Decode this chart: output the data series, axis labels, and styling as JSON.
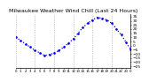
{
  "title": "Milwaukee Weather Wind Chill (Last 24 Hours)",
  "title_fontsize": 4.5,
  "line_color": "#0000ee",
  "marker": ".",
  "marker_size": 1.8,
  "linestyle": "dotted",
  "linewidth": 0.9,
  "background_color": "#ffffff",
  "plot_bg_color": "#ffffff",
  "ylim": [
    -27,
    38
  ],
  "yticks": [
    -25,
    -20,
    -15,
    -10,
    -5,
    0,
    5,
    10,
    15,
    20,
    25,
    30,
    35
  ],
  "ytick_fontsize": 3.2,
  "xtick_fontsize": 2.8,
  "grid_color": "#999999",
  "grid_linestyle": ":",
  "hours": [
    0,
    1,
    2,
    3,
    4,
    5,
    6,
    7,
    8,
    9,
    10,
    11,
    12,
    13,
    14,
    15,
    16,
    17,
    18,
    19,
    20,
    21,
    22,
    23,
    24
  ],
  "xtick_labels": [
    "0",
    "1",
    "2",
    "3",
    "4",
    "5",
    "6",
    "7",
    "8",
    "9",
    "10",
    "11",
    "12",
    "13",
    "14",
    "15",
    "16",
    "17",
    "18",
    "19",
    "20",
    "21",
    "22",
    "23",
    "0"
  ],
  "wind_chill": [
    10,
    6,
    2,
    -2,
    -6,
    -9,
    -12,
    -11,
    -9,
    -6,
    -2,
    3,
    8,
    15,
    22,
    27,
    31,
    34,
    33,
    31,
    27,
    20,
    13,
    4,
    -5
  ]
}
